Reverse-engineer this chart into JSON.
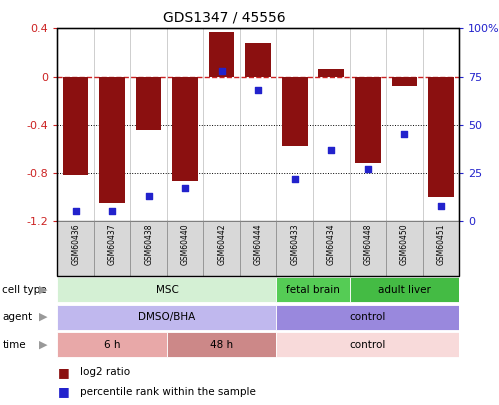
{
  "title": "GDS1347 / 45556",
  "samples": [
    "GSM60436",
    "GSM60437",
    "GSM60438",
    "GSM60440",
    "GSM60442",
    "GSM60444",
    "GSM60433",
    "GSM60434",
    "GSM60448",
    "GSM60450",
    "GSM60451"
  ],
  "log2_ratio": [
    -0.82,
    -1.05,
    -0.44,
    -0.87,
    0.37,
    0.28,
    -0.58,
    0.06,
    -0.72,
    -0.08,
    -1.0
  ],
  "percentile_rank": [
    5,
    5,
    13,
    17,
    78,
    68,
    22,
    37,
    27,
    45,
    8
  ],
  "bar_color": "#8B1010",
  "dot_color": "#2222CC",
  "dashed_line_color": "#CC2222",
  "ylim_left": [
    -1.2,
    0.4
  ],
  "ylim_right": [
    0,
    100
  ],
  "yticks_left": [
    -1.2,
    -0.8,
    -0.4,
    0.0,
    0.4
  ],
  "ytick_labels_left": [
    "-1.2",
    "-0.8",
    "-0.4",
    "0",
    "0.4"
  ],
  "yticks_right": [
    0,
    25,
    50,
    75,
    100
  ],
  "ytick_labels_right": [
    "0",
    "25",
    "50",
    "75",
    "100%"
  ],
  "cell_type_groups": [
    {
      "label": "MSC",
      "start": 0,
      "end": 6,
      "color": "#d4f0d4"
    },
    {
      "label": "fetal brain",
      "start": 6,
      "end": 8,
      "color": "#55cc55"
    },
    {
      "label": "adult liver",
      "start": 8,
      "end": 11,
      "color": "#44bb44"
    }
  ],
  "agent_groups": [
    {
      "label": "DMSO/BHA",
      "start": 0,
      "end": 6,
      "color": "#c0b8ee"
    },
    {
      "label": "control",
      "start": 6,
      "end": 11,
      "color": "#9988dd"
    }
  ],
  "time_groups": [
    {
      "label": "6 h",
      "start": 0,
      "end": 3,
      "color": "#e8a8a8"
    },
    {
      "label": "48 h",
      "start": 3,
      "end": 6,
      "color": "#cc8888"
    },
    {
      "label": "control",
      "start": 6,
      "end": 11,
      "color": "#f8dada"
    }
  ],
  "row_labels": [
    "cell type",
    "agent",
    "time"
  ],
  "legend_items": [
    {
      "label": "log2 ratio",
      "color": "#8B1010"
    },
    {
      "label": "percentile rank within the sample",
      "color": "#2222CC"
    }
  ],
  "bg_color": "#ffffff",
  "sample_box_color": "#d8d8d8",
  "sample_box_edge": "#888888"
}
